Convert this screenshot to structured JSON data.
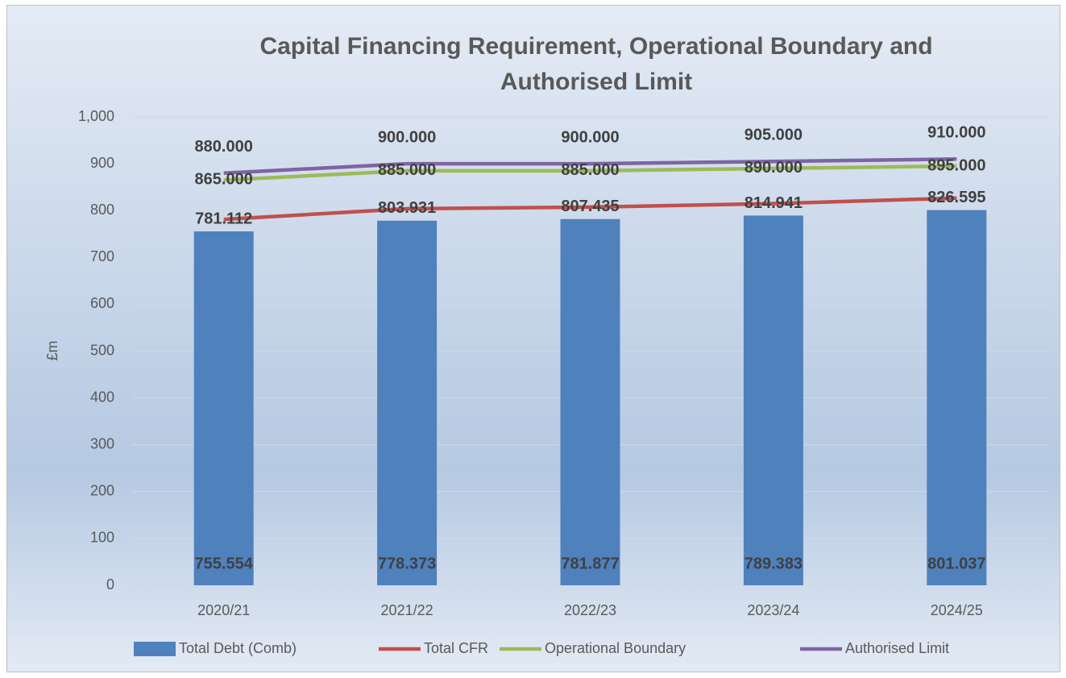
{
  "chart_data": {
    "type": "combo",
    "title": "Capital Financing Requirement, Operational Boundary and Authorised Limit",
    "y_label": "£m",
    "categories": [
      "2020/21",
      "2021/22",
      "2022/23",
      "2023/24",
      "2024/25"
    ],
    "series": [
      {
        "name": "Total Debt (Comb)",
        "type": "bar",
        "color": "#4f81bd",
        "values": [
          755.554,
          778.373,
          781.877,
          789.383,
          801.037
        ]
      },
      {
        "name": "Total CFR",
        "type": "line",
        "color": "#c0504d",
        "values": [
          781.112,
          803.931,
          807.435,
          814.941,
          826.595
        ]
      },
      {
        "name": "Operational Boundary",
        "type": "line",
        "color": "#9bbb59",
        "values": [
          865,
          885,
          885,
          890,
          895
        ],
        "value_labels": [
          "865.000",
          "885.000",
          "885.000",
          "890.000",
          "895.000"
        ]
      },
      {
        "name": "Authorised Limit",
        "type": "line",
        "color": "#8064a2",
        "values": [
          880,
          900,
          900,
          905,
          910
        ],
        "value_labels": [
          "880.000",
          "900.000",
          "900.000",
          "905.000",
          "910.000"
        ]
      }
    ],
    "ylim": [
      0,
      1000
    ],
    "yticks": [
      0,
      100,
      200,
      300,
      400,
      500,
      600,
      700,
      800,
      900,
      {
        "value": 1000,
        "label": "1,000"
      }
    ],
    "grid": true,
    "legend": "bottom"
  }
}
